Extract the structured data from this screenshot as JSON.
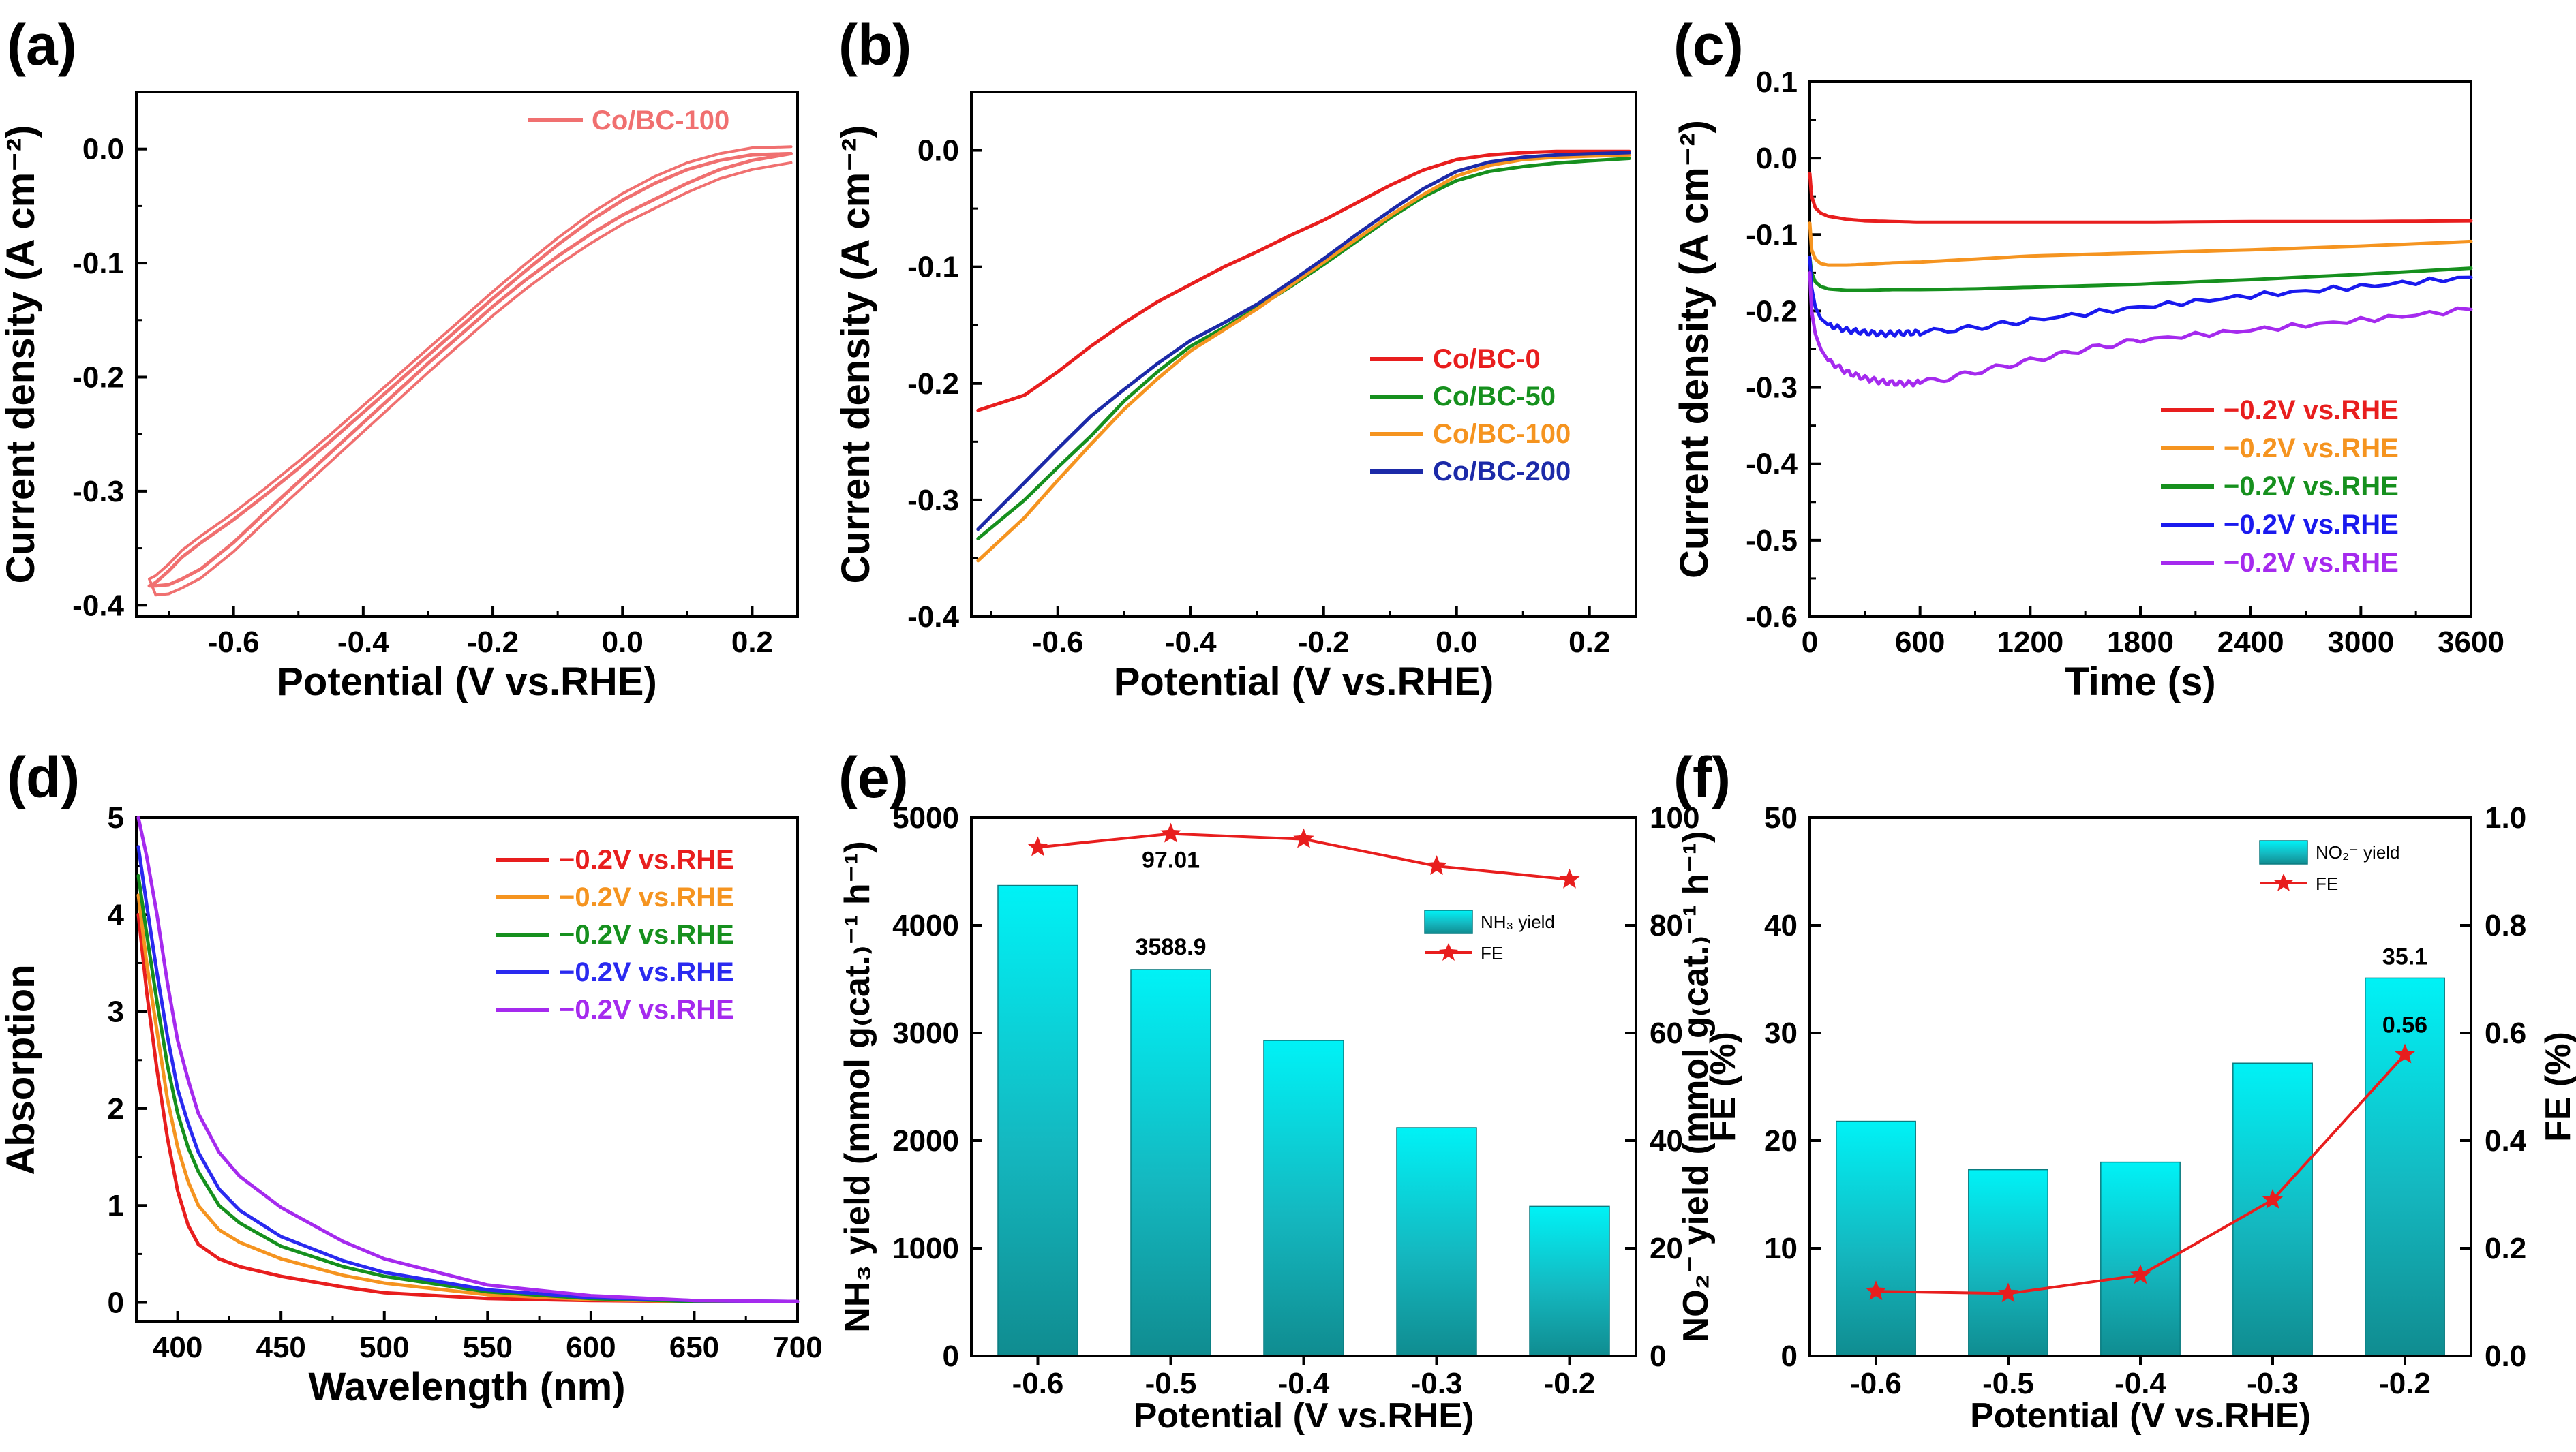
{
  "chart_data": [
    {
      "panel": "(a)",
      "type": "line",
      "xlabel": "Potential (V vs.RHE)",
      "ylabel": "Current density (A cm⁻²)",
      "xlim": [
        -0.75,
        0.27
      ],
      "ylim": [
        -0.41,
        0.05
      ],
      "xticks": [
        "-0.6",
        "-0.4",
        "-0.2",
        "0.0",
        "0.2"
      ],
      "yticks": [
        "0.0",
        "-0.1",
        "-0.2",
        "-0.3",
        "-0.4"
      ],
      "legend": [
        "Co/BC-100"
      ],
      "series": [
        {
          "name": "Co/BC-100",
          "color": "#f07070",
          "x": [
            0.26,
            0.2,
            0.15,
            0.1,
            0.05,
            0.0,
            -0.05,
            -0.1,
            -0.15,
            -0.2,
            -0.25,
            -0.3,
            -0.35,
            -0.4,
            -0.45,
            -0.5,
            -0.55,
            -0.6,
            -0.65,
            -0.68,
            -0.7,
            -0.72,
            -0.73,
            -0.72,
            -0.7,
            -0.68,
            -0.65,
            -0.6,
            -0.55,
            -0.5,
            -0.45,
            -0.4,
            -0.35,
            -0.3,
            -0.25,
            -0.2,
            -0.15,
            -0.1,
            -0.05,
            0.0,
            0.05,
            0.1,
            0.15,
            0.2,
            0.26
          ],
          "y": [
            -0.004,
            -0.01,
            -0.018,
            -0.03,
            -0.044,
            -0.058,
            -0.075,
            -0.094,
            -0.115,
            -0.138,
            -0.163,
            -0.188,
            -0.214,
            -0.24,
            -0.266,
            -0.292,
            -0.318,
            -0.345,
            -0.368,
            -0.377,
            -0.382,
            -0.383,
            -0.383,
            -0.38,
            -0.37,
            -0.358,
            -0.345,
            -0.325,
            -0.303,
            -0.28,
            -0.256,
            -0.231,
            -0.206,
            -0.181,
            -0.156,
            -0.131,
            -0.107,
            -0.084,
            -0.063,
            -0.045,
            -0.03,
            -0.018,
            -0.01,
            -0.005,
            -0.004
          ]
        }
      ]
    },
    {
      "panel": "(b)",
      "type": "line",
      "xlabel": "Potential (V vs.RHE)",
      "ylabel": "Current density (A cm⁻²)",
      "xlim": [
        -0.73,
        0.27
      ],
      "ylim": [
        -0.4,
        0.05
      ],
      "xticks": [
        "-0.6",
        "-0.4",
        "-0.2",
        "0.0",
        "0.2"
      ],
      "yticks": [
        "0.0",
        "-0.1",
        "-0.2",
        "-0.3",
        "-0.4"
      ],
      "legend": [
        "Co/BC-0",
        "Co/BC-50",
        "Co/BC-100",
        "Co/BC-200"
      ],
      "series": [
        {
          "name": "Co/BC-0",
          "color": "#e81e1e",
          "x": [
            -0.72,
            -0.65,
            -0.6,
            -0.55,
            -0.5,
            -0.45,
            -0.4,
            -0.35,
            -0.3,
            -0.25,
            -0.2,
            -0.15,
            -0.1,
            -0.05,
            0.0,
            0.05,
            0.1,
            0.15,
            0.2,
            0.26
          ],
          "y": [
            -0.223,
            -0.21,
            -0.19,
            -0.168,
            -0.148,
            -0.13,
            -0.115,
            -0.1,
            -0.087,
            -0.073,
            -0.06,
            -0.045,
            -0.03,
            -0.017,
            -0.008,
            -0.004,
            -0.002,
            -0.001,
            -0.001,
            -0.001
          ]
        },
        {
          "name": "Co/BC-50",
          "color": "#16901e",
          "x": [
            -0.72,
            -0.65,
            -0.6,
            -0.55,
            -0.5,
            -0.45,
            -0.4,
            -0.35,
            -0.3,
            -0.25,
            -0.2,
            -0.15,
            -0.1,
            -0.05,
            0.0,
            0.05,
            0.1,
            0.15,
            0.2,
            0.26
          ],
          "y": [
            -0.333,
            -0.3,
            -0.272,
            -0.245,
            -0.215,
            -0.19,
            -0.168,
            -0.152,
            -0.135,
            -0.117,
            -0.098,
            -0.078,
            -0.058,
            -0.04,
            -0.026,
            -0.018,
            -0.014,
            -0.011,
            -0.009,
            -0.007
          ]
        },
        {
          "name": "Co/BC-100",
          "color": "#f59420",
          "x": [
            -0.72,
            -0.65,
            -0.6,
            -0.55,
            -0.5,
            -0.45,
            -0.4,
            -0.35,
            -0.3,
            -0.25,
            -0.2,
            -0.15,
            -0.1,
            -0.05,
            0.0,
            0.05,
            0.1,
            0.15,
            0.2,
            0.26
          ],
          "y": [
            -0.352,
            -0.315,
            -0.283,
            -0.252,
            -0.222,
            -0.196,
            -0.172,
            -0.154,
            -0.136,
            -0.116,
            -0.096,
            -0.076,
            -0.056,
            -0.038,
            -0.022,
            -0.013,
            -0.008,
            -0.006,
            -0.005,
            -0.004
          ]
        },
        {
          "name": "Co/BC-200",
          "color": "#1c2aa8",
          "x": [
            -0.72,
            -0.65,
            -0.6,
            -0.55,
            -0.5,
            -0.45,
            -0.4,
            -0.35,
            -0.3,
            -0.25,
            -0.2,
            -0.15,
            -0.1,
            -0.05,
            0.0,
            0.05,
            0.1,
            0.15,
            0.2,
            0.26
          ],
          "y": [
            -0.325,
            -0.285,
            -0.256,
            -0.228,
            -0.205,
            -0.183,
            -0.163,
            -0.148,
            -0.132,
            -0.113,
            -0.093,
            -0.072,
            -0.052,
            -0.033,
            -0.018,
            -0.01,
            -0.006,
            -0.004,
            -0.003,
            -0.002
          ]
        }
      ]
    },
    {
      "panel": "(c)",
      "type": "line",
      "xlabel": "Time (s)",
      "ylabel": "Current density (A cm⁻²)",
      "xlim": [
        0,
        3600
      ],
      "ylim": [
        -0.6,
        0.1
      ],
      "xticks": [
        "0",
        "600",
        "1200",
        "1800",
        "2400",
        "3000",
        "3600"
      ],
      "yticks": [
        "0.1",
        "0.0",
        "-0.1",
        "-0.2",
        "-0.3",
        "-0.4",
        "-0.5",
        "-0.6"
      ],
      "legend": [
        "−0.2V vs.RHE",
        "−0.2V vs.RHE",
        "−0.2V vs.RHE",
        "−0.2V vs.RHE",
        "−0.2V vs.RHE"
      ],
      "series": [
        {
          "name": "−0.2V vs.RHE",
          "color": "#e81e1e",
          "x": [
            0,
            10,
            30,
            60,
            100,
            200,
            300,
            450,
            600,
            900,
            1200,
            1800,
            2400,
            3000,
            3600
          ],
          "y": [
            -0.02,
            -0.05,
            -0.065,
            -0.072,
            -0.076,
            -0.08,
            -0.082,
            -0.083,
            -0.084,
            -0.084,
            -0.084,
            -0.084,
            -0.083,
            -0.083,
            -0.082
          ]
        },
        {
          "name": "−0.2V vs.RHE",
          "color": "#f59420",
          "x": [
            0,
            10,
            30,
            60,
            100,
            200,
            300,
            450,
            600,
            900,
            1200,
            1800,
            2400,
            3000,
            3600
          ],
          "y": [
            -0.085,
            -0.12,
            -0.132,
            -0.138,
            -0.14,
            -0.14,
            -0.139,
            -0.137,
            -0.136,
            -0.132,
            -0.128,
            -0.124,
            -0.12,
            -0.115,
            -0.109
          ]
        },
        {
          "name": "−0.2V vs.RHE",
          "color": "#16901e",
          "x": [
            0,
            10,
            30,
            60,
            100,
            200,
            300,
            450,
            600,
            900,
            1200,
            1800,
            2400,
            3000,
            3600
          ],
          "y": [
            -0.13,
            -0.15,
            -0.162,
            -0.168,
            -0.171,
            -0.173,
            -0.173,
            -0.172,
            -0.172,
            -0.171,
            -0.169,
            -0.165,
            -0.159,
            -0.152,
            -0.144
          ]
        },
        {
          "name": "−0.2V vs.RHE",
          "color": "#1a1aee",
          "x": [
            0,
            10,
            30,
            60,
            100,
            200,
            300,
            400,
            500,
            600,
            900,
            1200,
            1800,
            2400,
            3000,
            3600
          ],
          "y": [
            -0.13,
            -0.17,
            -0.195,
            -0.21,
            -0.218,
            -0.225,
            -0.228,
            -0.23,
            -0.229,
            -0.228,
            -0.222,
            -0.212,
            -0.195,
            -0.18,
            -0.168,
            -0.156
          ]
        },
        {
          "name": "−0.2V vs.RHE",
          "color": "#a52aee",
          "x": [
            0,
            10,
            30,
            60,
            100,
            200,
            300,
            400,
            500,
            600,
            750,
            900,
            1200,
            1500,
            1800,
            2400,
            3000,
            3600
          ],
          "y": [
            -0.15,
            -0.2,
            -0.23,
            -0.25,
            -0.265,
            -0.28,
            -0.288,
            -0.293,
            -0.295,
            -0.294,
            -0.288,
            -0.28,
            -0.265,
            -0.25,
            -0.238,
            -0.225,
            -0.212,
            -0.198
          ]
        }
      ]
    },
    {
      "panel": "(d)",
      "type": "line",
      "xlabel": "Wavelength (nm)",
      "ylabel": "Absorption",
      "xlim": [
        380,
        700
      ],
      "ylim": [
        -0.2,
        5
      ],
      "xticks": [
        "400",
        "450",
        "500",
        "550",
        "600",
        "650",
        "700"
      ],
      "yticks": [
        "0",
        "1",
        "2",
        "3",
        "4",
        "5"
      ],
      "legend": [
        "−0.2V vs.RHE",
        "−0.2V vs.RHE",
        "−0.2V vs.RHE",
        "−0.2V vs.RHE",
        "−0.2V vs.RHE"
      ],
      "series": [
        {
          "name": "−0.2V vs.RHE",
          "color": "#e81e1e",
          "x": [
            381,
            385,
            390,
            395,
            400,
            405,
            410,
            420,
            430,
            450,
            480,
            500,
            550,
            600,
            650,
            700
          ],
          "y": [
            4.0,
            3.2,
            2.4,
            1.7,
            1.15,
            0.8,
            0.6,
            0.45,
            0.37,
            0.27,
            0.16,
            0.1,
            0.04,
            0.02,
            0.01,
            0.01
          ]
        },
        {
          "name": "−0.2V vs.RHE",
          "color": "#f59420",
          "x": [
            381,
            385,
            390,
            395,
            400,
            405,
            410,
            420,
            430,
            450,
            480,
            500,
            550,
            600,
            650,
            700
          ],
          "y": [
            4.2,
            3.5,
            2.8,
            2.1,
            1.6,
            1.25,
            1.0,
            0.75,
            0.62,
            0.45,
            0.28,
            0.2,
            0.08,
            0.03,
            0.01,
            0.01
          ]
        },
        {
          "name": "−0.2V vs.RHE",
          "color": "#16901e",
          "x": [
            381,
            385,
            390,
            395,
            400,
            405,
            410,
            420,
            430,
            450,
            480,
            500,
            550,
            600,
            650,
            700
          ],
          "y": [
            4.4,
            3.8,
            3.1,
            2.45,
            1.95,
            1.6,
            1.35,
            1.0,
            0.82,
            0.58,
            0.37,
            0.27,
            0.11,
            0.04,
            0.01,
            0.01
          ]
        },
        {
          "name": "−0.2V vs.RHE",
          "color": "#2a2af0",
          "x": [
            381,
            385,
            390,
            395,
            400,
            405,
            410,
            420,
            430,
            450,
            480,
            500,
            550,
            600,
            650,
            700
          ],
          "y": [
            4.7,
            4.1,
            3.4,
            2.75,
            2.2,
            1.85,
            1.55,
            1.17,
            0.95,
            0.68,
            0.43,
            0.31,
            0.13,
            0.05,
            0.02,
            0.01
          ]
        },
        {
          "name": "−0.2V vs.RHE",
          "color": "#a52aee",
          "x": [
            381,
            385,
            390,
            395,
            400,
            405,
            410,
            420,
            430,
            450,
            480,
            500,
            550,
            600,
            650,
            700
          ],
          "y": [
            5.0,
            4.6,
            4.0,
            3.3,
            2.7,
            2.3,
            1.95,
            1.55,
            1.3,
            0.98,
            0.63,
            0.45,
            0.18,
            0.07,
            0.02,
            0.01
          ]
        }
      ]
    },
    {
      "panel": "(e)",
      "type": "bar",
      "xlabel": "Potential (V vs.RHE)",
      "ylabel": "NH₃ yield (mmol g₍cat.₎⁻¹ h⁻¹)",
      "ylabel_right": "FE (%)",
      "categories": [
        "-0.6",
        "-0.5",
        "-0.4",
        "-0.3",
        "-0.2"
      ],
      "ylim": [
        0,
        5000
      ],
      "ylim_right": [
        0,
        100
      ],
      "yticks": [
        "0",
        "1000",
        "2000",
        "3000",
        "4000",
        "5000"
      ],
      "yticks_right": [
        "0",
        "20",
        "40",
        "60",
        "80",
        "100"
      ],
      "legend": [
        "NH₃ yield",
        "FE"
      ],
      "series": [
        {
          "name": "NH₃ yield",
          "axis": "left",
          "color": "#00e5ee",
          "values": [
            4370,
            3588.9,
            2930,
            2120,
            1390
          ]
        },
        {
          "name": "FE",
          "axis": "right",
          "color": "#e81e1e",
          "values": [
            94.5,
            97.01,
            96.0,
            91.0,
            88.5
          ]
        }
      ],
      "annotations": [
        "3588.9",
        "97.01"
      ]
    },
    {
      "panel": "(f)",
      "type": "bar",
      "xlabel": "Potential (V vs.RHE)",
      "ylabel": "NO₂⁻ yield (mmol g₍cat.₎⁻¹ h⁻¹)",
      "ylabel_right": "FE (%)",
      "categories": [
        "-0.6",
        "-0.5",
        "-0.4",
        "-0.3",
        "-0.2"
      ],
      "ylim": [
        0,
        50
      ],
      "ylim_right": [
        0,
        1.0
      ],
      "yticks": [
        "0",
        "10",
        "20",
        "30",
        "40",
        "50"
      ],
      "yticks_right": [
        "0.0",
        "0.2",
        "0.4",
        "0.6",
        "0.8",
        "1.0"
      ],
      "legend": [
        "NO₂⁻ yield",
        "FE"
      ],
      "series": [
        {
          "name": "NO₂⁻ yield",
          "axis": "left",
          "color": "#00e5ee",
          "values": [
            21.8,
            17.3,
            18.0,
            27.2,
            35.1
          ]
        },
        {
          "name": "FE",
          "axis": "right",
          "color": "#e81e1e",
          "values": [
            0.12,
            0.116,
            0.15,
            0.29,
            0.56
          ]
        }
      ],
      "annotations": [
        "35.1",
        "0.56"
      ]
    }
  ]
}
